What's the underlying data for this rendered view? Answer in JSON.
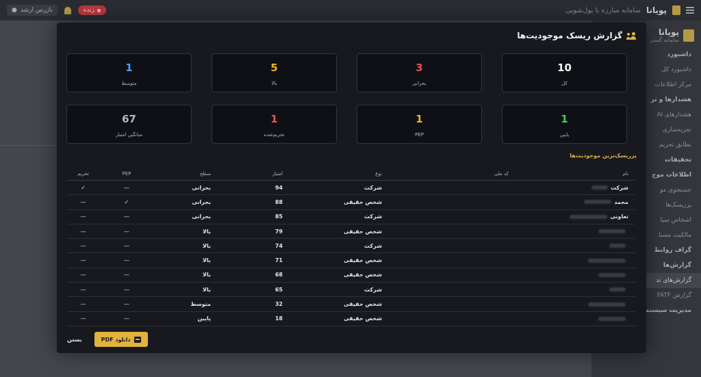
{
  "topbar": {
    "brand_name": "پویانا",
    "brand_subtitle": "سامانه مبارزه با پول‌شویی",
    "user_label": "بازرس ارشد",
    "live_badge": "زنده"
  },
  "sidebar": {
    "brand_title": "پویانا",
    "brand_subtitle": "سامانه گستر",
    "items": [
      {
        "label": "داشبورد",
        "section": true
      },
      {
        "label": "داشبورد کل",
        "section": false
      },
      {
        "label": "مرکز اطلاعات",
        "section": false
      },
      {
        "label": "هشدارها و تر",
        "section": true
      },
      {
        "label": "هشدارهای AI",
        "section": false
      },
      {
        "label": "تجزیه‌سازی",
        "section": false
      },
      {
        "label": "تطابق تحریم",
        "section": false
      },
      {
        "label": "تحقیقات",
        "section": true
      },
      {
        "label": "اطلاعات موج",
        "section": true
      },
      {
        "label": "جستجوی مو",
        "section": false
      },
      {
        "label": "پرریسک‌ها",
        "section": false
      },
      {
        "label": "اشخاص سیا",
        "section": false
      },
      {
        "label": "مالکیت مستا",
        "section": false
      },
      {
        "label": "گراف روابط",
        "section": true
      },
      {
        "label": "گزارش‌ها",
        "section": true
      },
      {
        "label": "گزارش‌های تد",
        "section": false
      },
      {
        "label": "گزارش FATF",
        "section": false
      },
      {
        "label": "مدیریت سیستم",
        "section": true
      }
    ]
  },
  "modal": {
    "title": "گزارش ریسک موجودیت‌ها",
    "section_title": "پرریسک‌ترین موجودیت‌ها",
    "pdf_button": "دانلود PDF",
    "close_label": "بستن"
  },
  "stats": [
    {
      "value": "10",
      "label": "کل",
      "color": "#f2f3f5"
    },
    {
      "value": "3",
      "label": "بحرانی",
      "color": "#e55353"
    },
    {
      "value": "5",
      "label": "بالا",
      "color": "#f0b429"
    },
    {
      "value": "1",
      "label": "متوسط",
      "color": "#4c9df5"
    },
    {
      "value": "1",
      "label": "پایین",
      "color": "#3fcf6a"
    },
    {
      "value": "1",
      "label": "PEP",
      "color": "#f0b429"
    },
    {
      "value": "1",
      "label": "تحریم‌شده",
      "color": "#e55353"
    },
    {
      "value": "67",
      "label": "میانگین امتیاز",
      "color": "#b5b7bc"
    }
  ],
  "table": {
    "headers": {
      "name": "نام",
      "national_id": "کد ملی",
      "type": "نوع",
      "score": "امتیاز",
      "level": "سطح",
      "pep": "PEP",
      "sanctioned": "تحریم"
    },
    "rows": [
      {
        "name": "شرکت",
        "type": "شرکت",
        "score": "94",
        "level": "بحرانی",
        "pep": "—",
        "sanctioned": "✓"
      },
      {
        "name": "محمد",
        "type": "شخص حقیقی",
        "score": "88",
        "level": "بحرانی",
        "pep": "✓",
        "sanctioned": "—"
      },
      {
        "name": "تعاونی",
        "type": "شرکت",
        "score": "85",
        "level": "بحرانی",
        "pep": "—",
        "sanctioned": "—"
      },
      {
        "name": "",
        "type": "شخص حقیقی",
        "score": "79",
        "level": "بالا",
        "pep": "—",
        "sanctioned": "—"
      },
      {
        "name": "",
        "type": "شرکت",
        "score": "74",
        "level": "بالا",
        "pep": "—",
        "sanctioned": "—"
      },
      {
        "name": "",
        "type": "شخص حقیقی",
        "score": "71",
        "level": "بالا",
        "pep": "—",
        "sanctioned": "—"
      },
      {
        "name": "",
        "type": "شخص حقیقی",
        "score": "68",
        "level": "بالا",
        "pep": "—",
        "sanctioned": "—"
      },
      {
        "name": "",
        "type": "شرکت",
        "score": "65",
        "level": "بالا",
        "pep": "—",
        "sanctioned": "—"
      },
      {
        "name": "",
        "type": "شخص حقیقی",
        "score": "32",
        "level": "متوسط",
        "pep": "—",
        "sanctioned": "—"
      },
      {
        "name": "",
        "type": "شخص حقیقی",
        "score": "18",
        "level": "پایین",
        "pep": "—",
        "sanctioned": "—"
      }
    ]
  }
}
